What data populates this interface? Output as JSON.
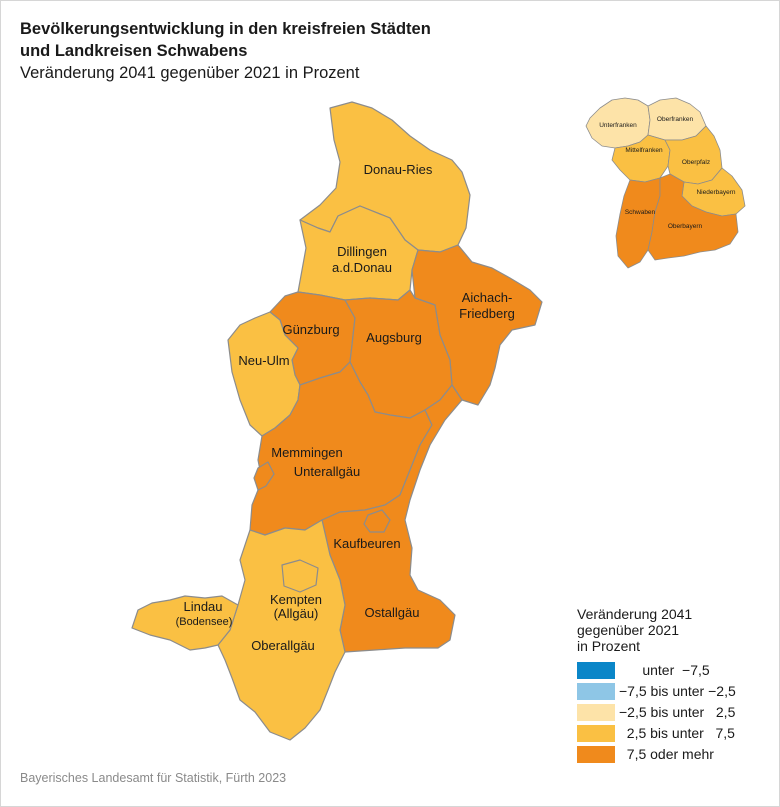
{
  "header": {
    "title_line1": "Bevölkerungsentwicklung in den kreisfreien Städten",
    "title_line2": "und Landkreisen Schwabens",
    "subtitle": "Veränderung 2041 gegenüber 2021 in Prozent"
  },
  "colors": {
    "class1": "#0a86c8",
    "class2": "#8ec6e6",
    "class3": "#fde3a8",
    "class4": "#fac043",
    "class5": "#f08a1c",
    "border": "#8c8c8c"
  },
  "districts": [
    {
      "name": "Donau-Ries",
      "class": "class4"
    },
    {
      "name": "Dillingen",
      "name2": "a.d.Donau",
      "class": "class4"
    },
    {
      "name": "Aichach-",
      "name2": "Friedberg",
      "class": "class5"
    },
    {
      "name": "Günzburg",
      "class": "class5"
    },
    {
      "name": "Augsburg",
      "class": "class5"
    },
    {
      "name": "Neu-Ulm",
      "class": "class4"
    },
    {
      "name": "Memmingen",
      "class": "class5"
    },
    {
      "name": "Unterallgäu",
      "class": "class5"
    },
    {
      "name": "Kaufbeuren",
      "class": "class5"
    },
    {
      "name": "Lindau",
      "name2": "(Bodensee)",
      "class": "class4"
    },
    {
      "name": "Kempten",
      "name2": "(Allgäu)",
      "class": "class4"
    },
    {
      "name": "Oberallgäu",
      "class": "class4"
    },
    {
      "name": "Ostallgäu",
      "class": "class5"
    }
  ],
  "inset": {
    "regions": [
      {
        "name": "Unterfranken",
        "class": "class3"
      },
      {
        "name": "Oberfranken",
        "class": "class3"
      },
      {
        "name": "Mittelfranken",
        "class": "class4"
      },
      {
        "name": "Oberpfalz",
        "class": "class4"
      },
      {
        "name": "Niederbayern",
        "class": "class4"
      },
      {
        "name": "Schwaben",
        "class": "class5"
      },
      {
        "name": "Oberbayern",
        "class": "class5"
      }
    ]
  },
  "legend": {
    "title_line1": "Veränderung 2041",
    "title_line2": "gegenüber 2021",
    "title_line3": "in Prozent",
    "items": [
      {
        "label": "      unter  −7,5",
        "color": "#0a86c8"
      },
      {
        "label": "−7,5 bis unter −2,5",
        "color": "#8ec6e6"
      },
      {
        "label": "−2,5 bis unter   2,5",
        "color": "#fde3a8"
      },
      {
        "label": "  2,5 bis unter   7,5",
        "color": "#fac043"
      },
      {
        "label": "  7,5 oder mehr",
        "color": "#f08a1c"
      }
    ]
  },
  "source": "Bayerisches Landesamt für Statistik, Fürth 2023"
}
